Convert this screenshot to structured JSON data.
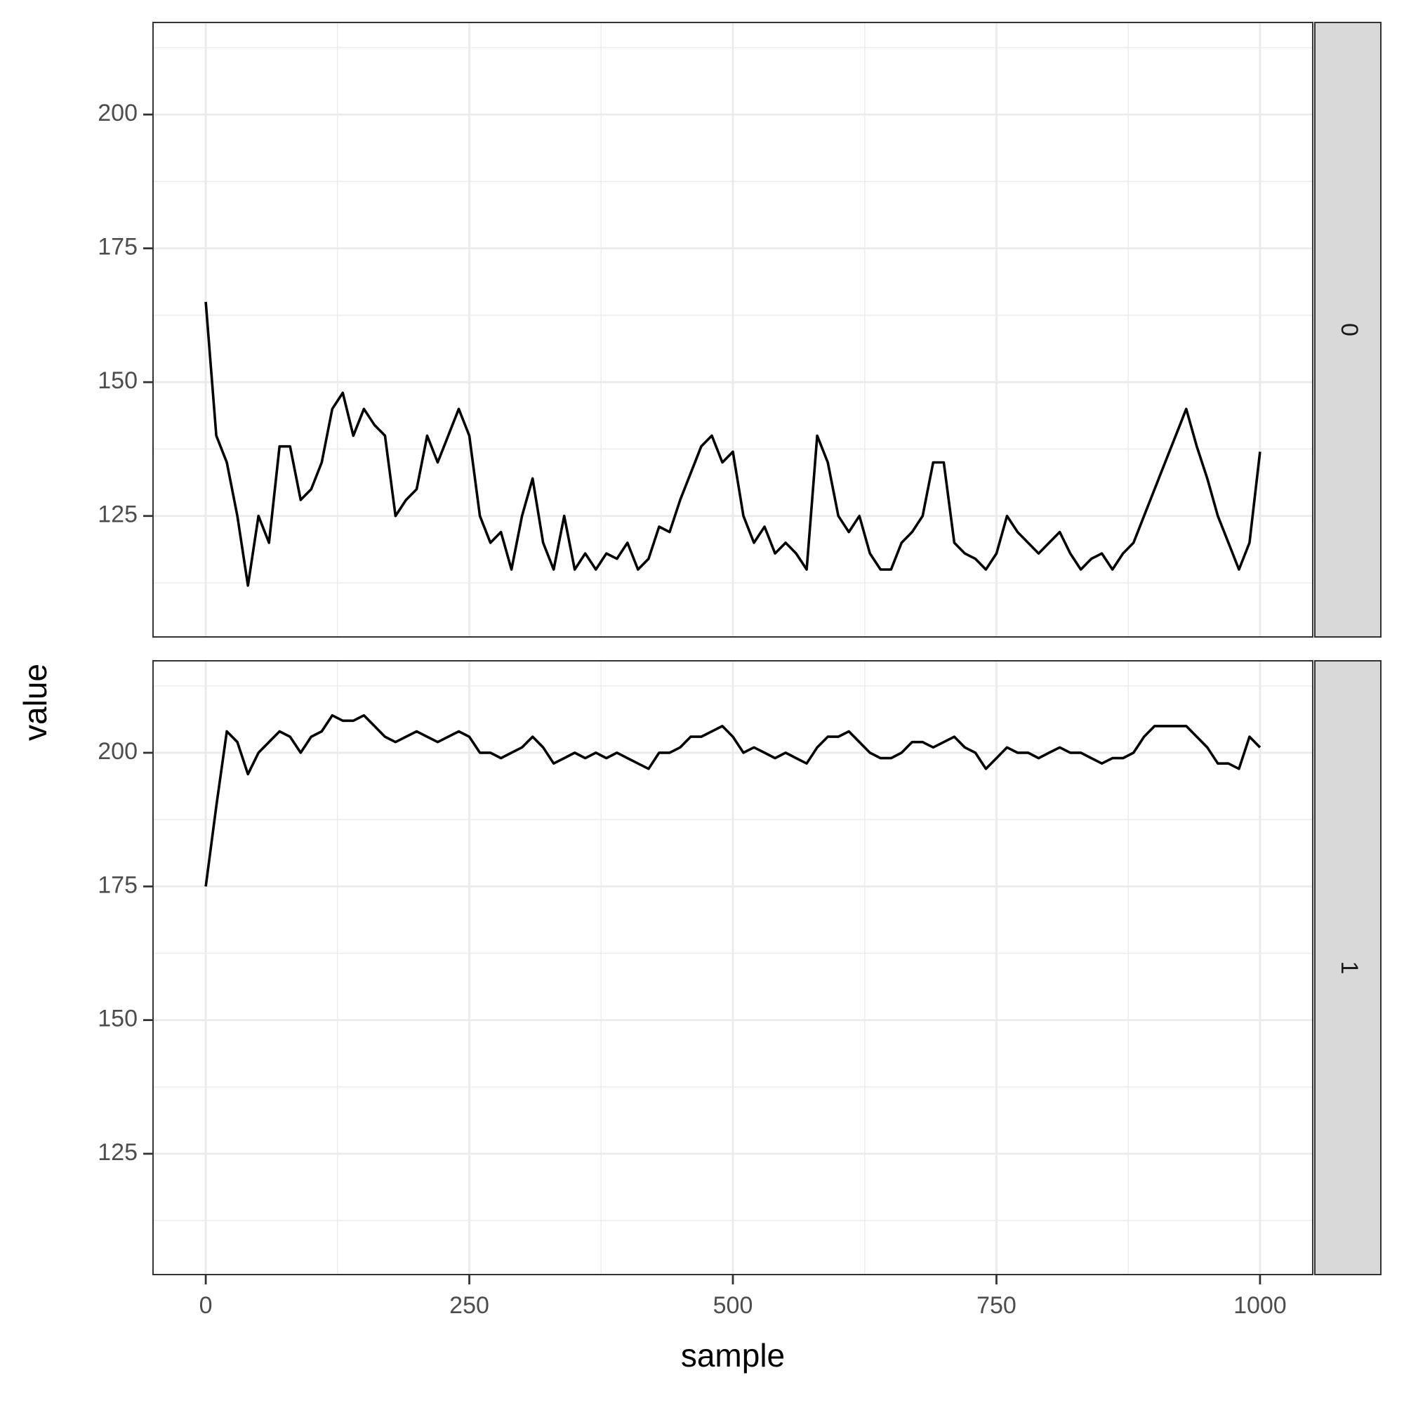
{
  "x_label": "sample",
  "y_label": "value",
  "chart_data": [
    {
      "type": "line",
      "strip": "0",
      "color": "#000000",
      "grid": true,
      "xlim": [
        -50,
        1050
      ],
      "xticks": [
        0,
        250,
        500,
        750,
        1000
      ],
      "minor_xticks": [
        125,
        375,
        625,
        875
      ],
      "ylim": [
        102.4,
        217.2
      ],
      "yticks": [
        125,
        150,
        175,
        200
      ],
      "minor_yticks": [
        112.5,
        137.5,
        162.5,
        187.5,
        212.5
      ],
      "x": [
        0,
        10,
        20,
        30,
        40,
        50,
        60,
        70,
        80,
        90,
        100,
        110,
        120,
        130,
        140,
        150,
        160,
        170,
        180,
        190,
        200,
        210,
        220,
        230,
        240,
        250,
        260,
        270,
        280,
        290,
        300,
        310,
        320,
        330,
        340,
        350,
        360,
        370,
        380,
        390,
        400,
        410,
        420,
        430,
        440,
        450,
        460,
        470,
        480,
        490,
        500,
        510,
        520,
        530,
        540,
        550,
        560,
        570,
        580,
        590,
        600,
        610,
        620,
        630,
        640,
        650,
        660,
        670,
        680,
        690,
        700,
        710,
        720,
        730,
        740,
        750,
        760,
        770,
        780,
        790,
        800,
        810,
        820,
        830,
        840,
        850,
        860,
        870,
        880,
        890,
        900,
        910,
        920,
        930,
        940,
        950,
        960,
        970,
        980,
        990,
        1000
      ],
      "values": [
        165,
        140,
        135,
        125,
        112,
        125,
        120,
        138,
        138,
        128,
        130,
        135,
        145,
        148,
        140,
        145,
        142,
        140,
        125,
        128,
        130,
        140,
        135,
        140,
        145,
        140,
        125,
        120,
        122,
        115,
        125,
        132,
        120,
        115,
        125,
        115,
        118,
        115,
        118,
        117,
        120,
        115,
        117,
        123,
        122,
        128,
        133,
        138,
        140,
        135,
        137,
        125,
        120,
        123,
        118,
        120,
        118,
        115,
        140,
        135,
        125,
        122,
        125,
        118,
        115,
        115,
        120,
        122,
        125,
        135,
        135,
        120,
        118,
        117,
        115,
        118,
        125,
        122,
        120,
        118,
        120,
        122,
        118,
        115,
        117,
        118,
        115,
        118,
        120,
        125,
        130,
        135,
        140,
        145,
        138,
        132,
        125,
        120,
        115,
        120,
        137
      ]
    },
    {
      "type": "line",
      "strip": "1",
      "color": "#000000",
      "grid": true,
      "xlim": [
        -50,
        1050
      ],
      "xticks": [
        0,
        250,
        500,
        750,
        1000
      ],
      "minor_xticks": [
        125,
        375,
        625,
        875
      ],
      "ylim": [
        102.4,
        217.2
      ],
      "yticks": [
        125,
        150,
        175,
        200
      ],
      "minor_yticks": [
        112.5,
        137.5,
        162.5,
        187.5,
        212.5
      ],
      "x": [
        0,
        10,
        20,
        30,
        40,
        50,
        60,
        70,
        80,
        90,
        100,
        110,
        120,
        130,
        140,
        150,
        160,
        170,
        180,
        190,
        200,
        210,
        220,
        230,
        240,
        250,
        260,
        270,
        280,
        290,
        300,
        310,
        320,
        330,
        340,
        350,
        360,
        370,
        380,
        390,
        400,
        410,
        420,
        430,
        440,
        450,
        460,
        470,
        480,
        490,
        500,
        510,
        520,
        530,
        540,
        550,
        560,
        570,
        580,
        590,
        600,
        610,
        620,
        630,
        640,
        650,
        660,
        670,
        680,
        690,
        700,
        710,
        720,
        730,
        740,
        750,
        760,
        770,
        780,
        790,
        800,
        810,
        820,
        830,
        840,
        850,
        860,
        870,
        880,
        890,
        900,
        910,
        920,
        930,
        940,
        950,
        960,
        970,
        980,
        990,
        1000
      ],
      "values": [
        175,
        190,
        204,
        202,
        196,
        200,
        202,
        204,
        203,
        200,
        203,
        204,
        207,
        206,
        206,
        207,
        205,
        203,
        202,
        203,
        204,
        203,
        202,
        203,
        204,
        203,
        200,
        200,
        199,
        200,
        201,
        203,
        201,
        198,
        199,
        200,
        199,
        200,
        199,
        200,
        199,
        198,
        197,
        200,
        200,
        201,
        203,
        203,
        204,
        205,
        203,
        200,
        201,
        200,
        199,
        200,
        199,
        198,
        201,
        203,
        203,
        204,
        202,
        200,
        199,
        199,
        200,
        202,
        202,
        201,
        202,
        203,
        201,
        200,
        197,
        199,
        201,
        200,
        200,
        199,
        200,
        201,
        200,
        200,
        199,
        198,
        199,
        199,
        200,
        203,
        205,
        205,
        205,
        205,
        203,
        201,
        198,
        198,
        197,
        203,
        201
      ]
    }
  ]
}
